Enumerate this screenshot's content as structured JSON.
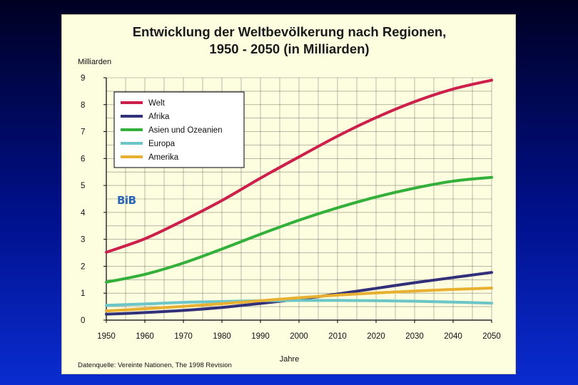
{
  "chart_data": {
    "type": "line",
    "title_line1": "Entwicklung der Weltbevölkerung nach Regionen,",
    "title_line2": "1950 - 2050 (in Milliarden)",
    "ylabel": "Milliarden",
    "xlabel": "Jahre",
    "source": "Datenquelle: Vereinte Nationen, The 1998 Revision",
    "watermark": "BiB",
    "ylim": [
      0,
      9
    ],
    "xlim": [
      1950,
      2050
    ],
    "yticks": [
      0,
      1,
      2,
      3,
      4,
      5,
      6,
      7,
      8,
      9
    ],
    "xticks": [
      1950,
      1960,
      1970,
      1980,
      1990,
      2000,
      2010,
      2020,
      2030,
      2040,
      2050
    ],
    "grid": true,
    "legend_position": "top-left",
    "x": [
      1950,
      1960,
      1970,
      1980,
      1990,
      2000,
      2010,
      2020,
      2030,
      2040,
      2050
    ],
    "series": [
      {
        "name": "Welt",
        "color": "#cc1f4a",
        "values": [
          2.52,
          3.02,
          3.7,
          4.44,
          5.27,
          6.06,
          6.83,
          7.52,
          8.11,
          8.58,
          8.91
        ]
      },
      {
        "name": "Afrika",
        "color": "#33307a",
        "values": [
          0.22,
          0.28,
          0.36,
          0.47,
          0.62,
          0.78,
          0.97,
          1.18,
          1.39,
          1.58,
          1.77
        ]
      },
      {
        "name": "Asien und Ozeanien",
        "color": "#33b03a",
        "values": [
          1.41,
          1.7,
          2.12,
          2.64,
          3.19,
          3.71,
          4.17,
          4.57,
          4.9,
          5.16,
          5.3
        ]
      },
      {
        "name": "Europa",
        "color": "#6cc6c8",
        "values": [
          0.55,
          0.6,
          0.66,
          0.69,
          0.72,
          0.73,
          0.73,
          0.72,
          0.7,
          0.67,
          0.63
        ]
      },
      {
        "name": "Amerika",
        "color": "#e8b030",
        "values": [
          0.34,
          0.42,
          0.51,
          0.61,
          0.72,
          0.83,
          0.93,
          1.01,
          1.08,
          1.14,
          1.19
        ]
      }
    ]
  }
}
